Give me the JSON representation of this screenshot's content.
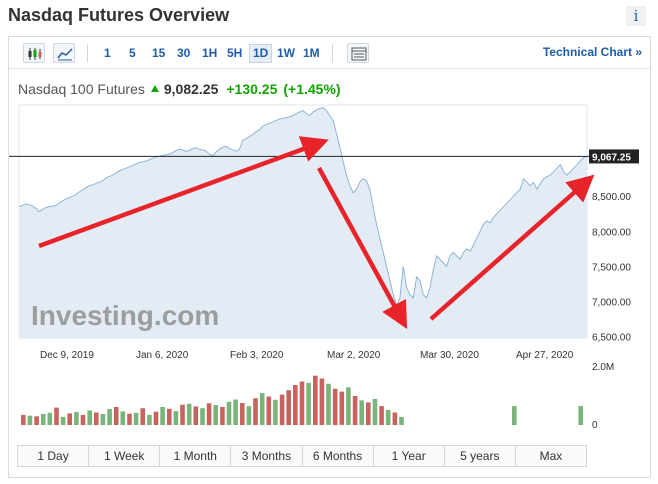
{
  "header": {
    "title": "Nasdaq Futures Overview",
    "info_icon": "info-icon"
  },
  "toolbar": {
    "chart_type_icons": [
      "candlestick-icon",
      "area-chart-icon"
    ],
    "timeframes": [
      "1",
      "5",
      "15",
      "30",
      "1H",
      "5H",
      "1D",
      "1W",
      "1M"
    ],
    "active_timeframe": "1D",
    "table_icon": "table-icon",
    "technical_chart_label": "Technical Chart »"
  },
  "quote": {
    "name": "Nasdaq 100 Futures",
    "price": "9,082.25",
    "change": "+130.25",
    "change_pct": "(+1.45%)",
    "direction_icon": "up-arrow-icon",
    "up_color": "#0ea600"
  },
  "chart_data": {
    "type": "area",
    "watermark": "Investing.com",
    "x_tick_labels": [
      "Dec 9, 2019",
      "Jan 6, 2020",
      "Feb 3, 2020",
      "Mar 2, 2020",
      "Mar 30, 2020",
      "Apr 27, 2020"
    ],
    "y_tick_labels": [
      "8,500.00",
      "8,000.00",
      "7,500.00",
      "7,000.00",
      "6,500.00"
    ],
    "y_ticks": [
      8500,
      8000,
      7500,
      7000,
      6500
    ],
    "ylim": [
      6480,
      9800
    ],
    "last_price_label": "9,067.25",
    "last_price": 9067.25,
    "line_color": "#90b4d4",
    "fill_color": "#e3ecf5",
    "values": [
      8350,
      8370,
      8390,
      8380,
      8360,
      8330,
      8280,
      8310,
      8340,
      8350,
      8360,
      8370,
      8400,
      8430,
      8460,
      8480,
      8500,
      8520,
      8560,
      8590,
      8620,
      8650,
      8660,
      8680,
      8700,
      8720,
      8760,
      8780,
      8800,
      8830,
      8860,
      8880,
      8900,
      8920,
      8940,
      8960,
      8980,
      8990,
      9000,
      9020,
      9040,
      9060,
      9070,
      9080,
      9090,
      9100,
      9120,
      9150,
      9170,
      9160,
      9140,
      9150,
      9180,
      9190,
      9170,
      9160,
      9140,
      9100,
      9080,
      9130,
      9170,
      9200,
      9210,
      9180,
      9160,
      9140,
      9170,
      9300,
      9320,
      9350,
      9380,
      9420,
      9450,
      9500,
      9520,
      9540,
      9560,
      9580,
      9600,
      9610,
      9620,
      9630,
      9650,
      9680,
      9700,
      9720,
      9680,
      9650,
      9700,
      9730,
      9750,
      9760,
      9720,
      9650,
      9580,
      9400,
      9200,
      9000,
      8800,
      8650,
      8550,
      8600,
      8700,
      8750,
      8720,
      8600,
      8350,
      8100,
      7900,
      7700,
      7500,
      7300,
      7100,
      6950,
      7050,
      7500,
      7200,
      7100,
      7050,
      7350,
      7300,
      7100,
      7050,
      7200,
      7450,
      7650,
      7600,
      7550,
      7500,
      7650,
      7700,
      7650,
      7600,
      7700,
      7750,
      7720,
      7800,
      7900,
      8000,
      8100,
      8150,
      8120,
      8200,
      8250,
      8300,
      8350,
      8400,
      8450,
      8500,
      8550,
      8600,
      8750,
      8700,
      8650,
      8700,
      8600,
      8680,
      8750,
      8780,
      8800,
      8850,
      8900,
      8950,
      8850,
      8800,
      8850,
      8900,
      8950,
      9000,
      9050,
      9067.25
    ]
  },
  "volume": {
    "label_top": "2.0M",
    "label_bottom": "0",
    "max": 2000000,
    "up_color": "#79b47a",
    "down_color": "#c8635f",
    "values": [
      350000,
      320000,
      300000,
      380000,
      420000,
      600000,
      280000,
      400000,
      450000,
      350000,
      500000,
      430000,
      380000,
      550000,
      620000,
      470000,
      390000,
      420000,
      580000,
      350000,
      460000,
      620000,
      560000,
      480000,
      700000,
      730000,
      640000,
      580000,
      750000,
      690000,
      620000,
      800000,
      880000,
      760000,
      650000,
      920000,
      1100000,
      980000,
      870000,
      1050000,
      1200000,
      1380000,
      1500000,
      1450000,
      1700000,
      1600000,
      1420000,
      1250000,
      1150000,
      1300000,
      1000000,
      850000,
      780000,
      900000,
      650000,
      520000,
      430000,
      280000,
      0,
      0,
      0,
      0,
      0,
      0,
      0,
      0,
      0,
      0,
      0,
      0,
      0,
      0,
      0,
      0,
      650000,
      0,
      0,
      0,
      0,
      0,
      0,
      0,
      0,
      0,
      650000
    ],
    "colors": [
      "d",
      "u",
      "d",
      "u",
      "u",
      "d",
      "u",
      "d",
      "u",
      "d",
      "u",
      "d",
      "u",
      "u",
      "d",
      "u",
      "d",
      "u",
      "d",
      "u",
      "d",
      "u",
      "d",
      "u",
      "d",
      "u",
      "d",
      "u",
      "d",
      "u",
      "d",
      "u",
      "u",
      "d",
      "u",
      "d",
      "u",
      "d",
      "u",
      "d",
      "d",
      "d",
      "d",
      "u",
      "d",
      "d",
      "u",
      "d",
      "d",
      "u",
      "d",
      "u",
      "d",
      "u",
      "d",
      "u",
      "d",
      "u",
      "u",
      "u",
      "u",
      "u",
      "u",
      "u",
      "u",
      "u",
      "u",
      "u",
      "u",
      "u",
      "u",
      "u",
      "u",
      "u",
      "u",
      "u",
      "u",
      "u",
      "u",
      "u",
      "u",
      "u",
      "u",
      "u",
      "u"
    ]
  },
  "range_buttons": [
    "1 Day",
    "1 Week",
    "1 Month",
    "3 Months",
    "6 Months",
    "1 Year",
    "5 years",
    "Max"
  ],
  "annotation_color": "#e8232a"
}
